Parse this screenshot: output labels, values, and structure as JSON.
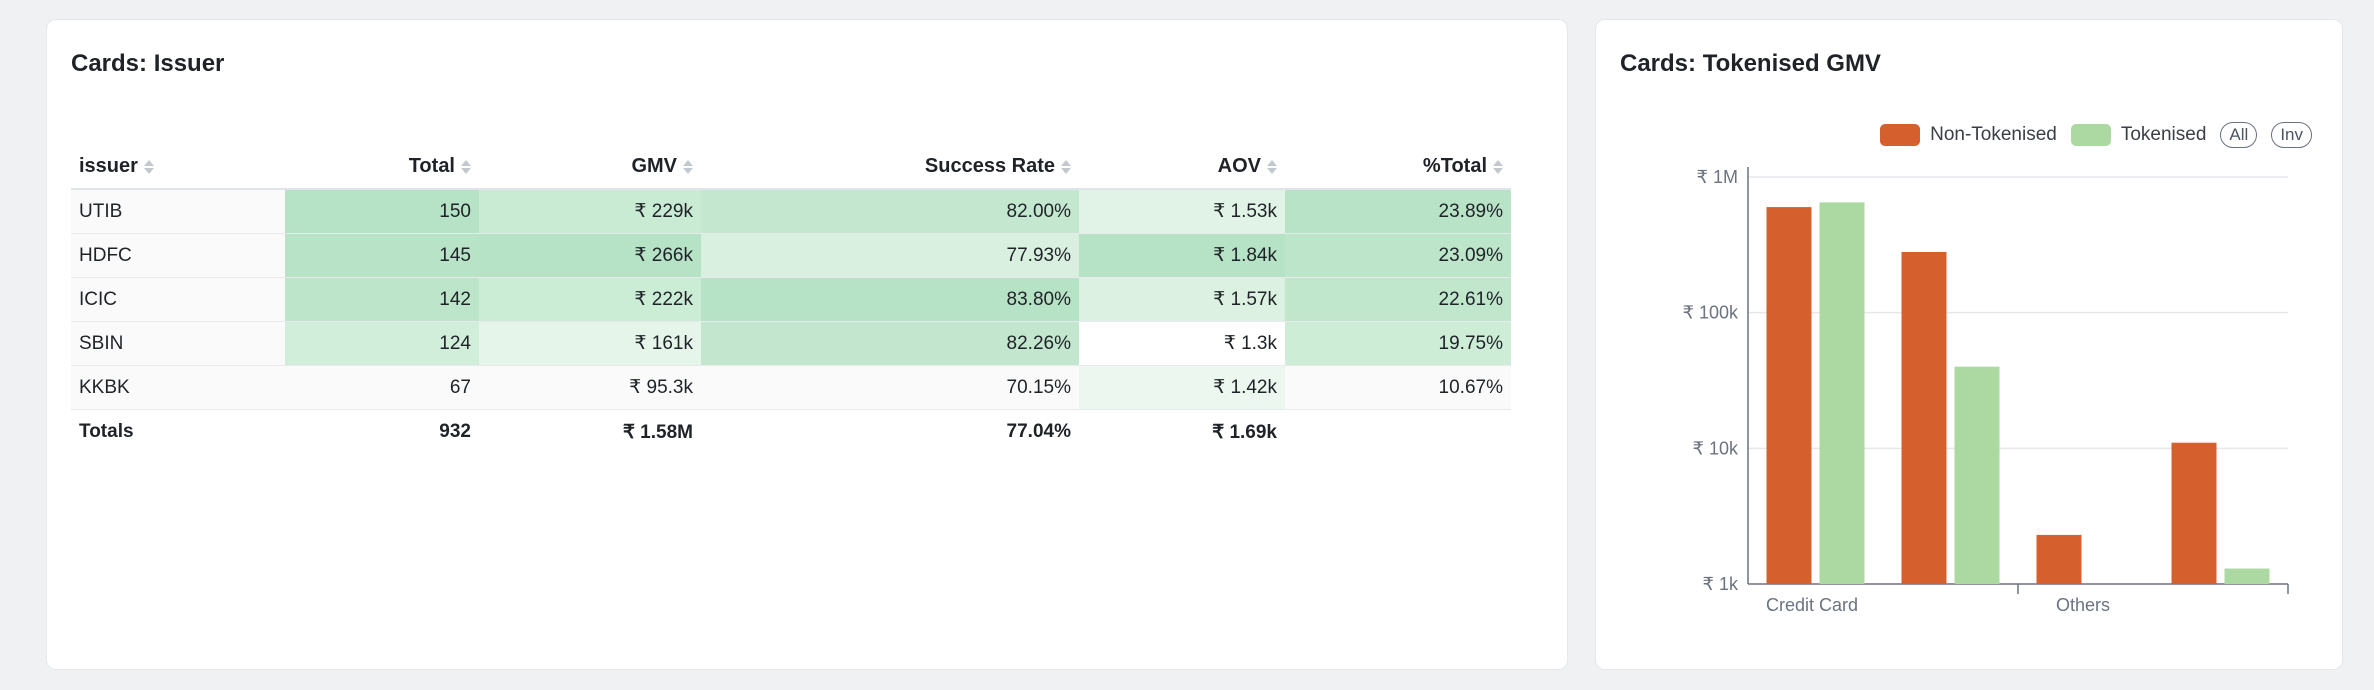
{
  "issuer_card": {
    "title": "Cards: Issuer",
    "columns": [
      "issuer",
      "Total",
      "GMV",
      "Success Rate",
      "AOV",
      "%Total"
    ],
    "rows": [
      [
        "UTIB",
        "150",
        "₹ 229k",
        "82.00%",
        "₹ 1.53k",
        "23.89%"
      ],
      [
        "HDFC",
        "145",
        "₹ 266k",
        "77.93%",
        "₹ 1.84k",
        "23.09%"
      ],
      [
        "ICIC",
        "142",
        "₹ 222k",
        "83.80%",
        "₹ 1.57k",
        "22.61%"
      ],
      [
        "SBIN",
        "124",
        "₹ 161k",
        "82.26%",
        "₹ 1.3k",
        "19.75%"
      ],
      [
        "KKBK",
        "67",
        "₹ 95.3k",
        "70.15%",
        "₹ 1.42k",
        "10.67%"
      ]
    ],
    "cell_colors": [
      [
        "#fafafa",
        "#b6e2c5",
        "#c9ebd3",
        "#c4e8cf",
        "#e1f3e6",
        "#b9e3c7"
      ],
      [
        "#fafafa",
        "#b9e3c7",
        "#b6e2c5",
        "#d9f0e0",
        "#b6e2c5",
        "#bce5c9"
      ],
      [
        "#fafafa",
        "#bce5c9",
        "#cbecd5",
        "#b6e2c5",
        "#dcf1e2",
        "#c0e6cc"
      ],
      [
        "#fafafa",
        "#d1eedb",
        "#e6f5ea",
        "#c2e7ce",
        "#ffffff",
        "#cdedd7"
      ],
      [
        "#fafafa",
        "#fafafa",
        "#fafafa",
        "#fafafa",
        "#ecf7ef",
        "#fafafa"
      ]
    ],
    "totals": [
      "Totals",
      "932",
      "₹ 1.58M",
      "77.04%",
      "₹ 1.69k",
      ""
    ]
  },
  "token_card": {
    "title": "Cards: Tokenised GMV",
    "legend": [
      "Non-Tokenised",
      "Tokenised"
    ],
    "pills": [
      "All",
      "Inv"
    ]
  },
  "chart_data": {
    "type": "bar",
    "scale": "log",
    "categories": [
      "Credit Card",
      "",
      "Others",
      ""
    ],
    "series": [
      {
        "name": "Non-Tokenised",
        "color": "#d65f2e",
        "values": [
          600000,
          280000,
          2300,
          11000
        ]
      },
      {
        "name": "Tokenised",
        "color": "#acd8a1",
        "values": [
          650000,
          40000,
          null,
          1300
        ]
      }
    ],
    "y_ticks": [
      1000,
      10000,
      100000,
      1000000
    ],
    "y_tick_labels": [
      "₹ 1k",
      "₹ 10k",
      "₹ 100k",
      "₹ 1M"
    ],
    "ylim": [
      1000,
      1000000
    ],
    "x_tick_labels": [
      "Credit Card",
      "Others"
    ],
    "grid": true,
    "legend_position": "top-right"
  }
}
